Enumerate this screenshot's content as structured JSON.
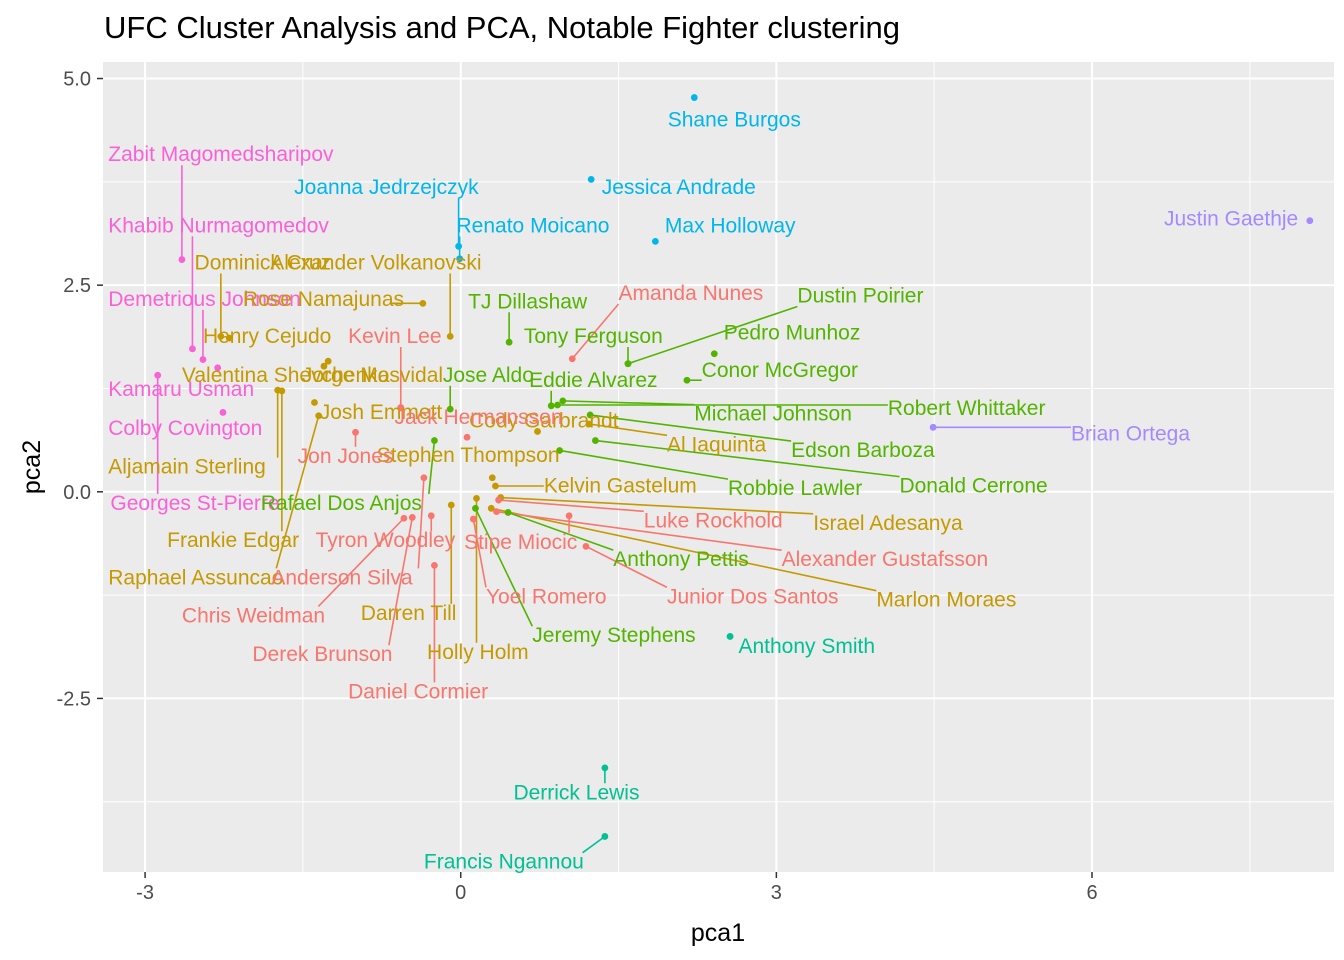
{
  "chart_data": {
    "type": "scatter",
    "title": "UFC Cluster Analysis and PCA, Notable Fighter clustering",
    "xlabel": "pca1",
    "ylabel": "pca2",
    "xlim": [
      -3.4,
      8.3
    ],
    "ylim": [
      -4.6,
      5.2
    ],
    "x_ticks": [
      -3,
      0,
      3,
      6
    ],
    "y_ticks": [
      5.0,
      2.5,
      0.0,
      -2.5
    ],
    "x_tick_labels": [
      "-3",
      "0",
      "3",
      "6"
    ],
    "y_tick_labels": [
      "5.0",
      "2.5",
      "0.0",
      "-2.5"
    ],
    "grid": true,
    "legend": "none",
    "colors": {
      "1": "#F8766D",
      "2": "#C49A00",
      "3": "#53B400",
      "4": "#00C094",
      "5": "#00B6EB",
      "6": "#A58AFF",
      "7": "#FB61D7"
    },
    "points": [
      {
        "name": "Shane Burgos",
        "x": 2.22,
        "y": 4.77,
        "c": 5,
        "lx": 2.6,
        "ly": 4.42,
        "a": "middle"
      },
      {
        "name": "Joanna Jedrzejczyk",
        "x": -0.02,
        "y": 2.97,
        "c": 5,
        "lx": 0.17,
        "ly": 3.6,
        "a": "end"
      },
      {
        "name": "Jessica Andrade",
        "x": 1.24,
        "y": 3.78,
        "c": 5,
        "lx": 1.34,
        "ly": 3.6,
        "a": "start"
      },
      {
        "name": "Renato Moicano",
        "x": -0.01,
        "y": 2.82,
        "c": 5,
        "lx": -0.04,
        "ly": 3.14,
        "a": "start"
      },
      {
        "name": "Max Holloway",
        "x": 1.85,
        "y": 3.03,
        "c": 5,
        "lx": 1.94,
        "ly": 3.14,
        "a": "start"
      },
      {
        "name": "Justin Gaethje",
        "x": 8.07,
        "y": 3.28,
        "c": 6,
        "lx": 7.96,
        "ly": 3.22,
        "a": "end"
      },
      {
        "name": "Brian Ortega",
        "x": 4.49,
        "y": 0.78,
        "c": 6,
        "lx": 5.8,
        "ly": 0.62,
        "a": "start"
      },
      {
        "name": "Zabit Magomedsharipov",
        "x": -2.65,
        "y": 2.81,
        "c": 7,
        "lx": -3.35,
        "ly": 4.0,
        "a": "start"
      },
      {
        "name": "Khabib Nurmagomedov",
        "x": -2.55,
        "y": 1.73,
        "c": 7,
        "lx": -3.35,
        "ly": 3.14,
        "a": "start"
      },
      {
        "name": "Demetrious Johnson",
        "x": -2.45,
        "y": 1.6,
        "c": 7,
        "lx": -3.35,
        "ly": 2.25,
        "a": "start"
      },
      {
        "name": "Kamaru Usman",
        "x": -2.31,
        "y": 1.5,
        "c": 7,
        "lx": -3.35,
        "ly": 1.16,
        "a": "start"
      },
      {
        "name": "Colby Covington",
        "x": -2.26,
        "y": 0.96,
        "c": 7,
        "lx": -3.35,
        "ly": 0.69,
        "a": "start"
      },
      {
        "name": "Georges St-Pierre",
        "x": -2.88,
        "y": 1.41,
        "c": 7,
        "lx": -3.33,
        "ly": -0.22,
        "a": "start"
      },
      {
        "name": "Dominick Cruz",
        "x": -2.28,
        "y": 1.88,
        "c": 2,
        "lx": -2.53,
        "ly": 2.69,
        "a": "start"
      },
      {
        "name": "Alexander Volkanovski",
        "x": -0.1,
        "y": 1.88,
        "c": 2,
        "lx": -1.81,
        "ly": 2.69,
        "a": "start"
      },
      {
        "name": "Rose Namajunas",
        "x": -0.36,
        "y": 2.28,
        "c": 2,
        "lx": -2.07,
        "ly": 2.25,
        "a": "start"
      },
      {
        "name": "Henry Cejudo",
        "x": -2.2,
        "y": 1.86,
        "c": 2,
        "lx": -2.45,
        "ly": 1.8,
        "a": "start"
      },
      {
        "name": "Valentina Shevchenko",
        "x": -1.26,
        "y": 1.58,
        "c": 2,
        "lx": -2.65,
        "ly": 1.33,
        "a": "start"
      },
      {
        "name": "Jorge Masvidal",
        "x": -1.3,
        "y": 1.52,
        "c": 2,
        "lx": -1.51,
        "ly": 1.33,
        "a": "start"
      },
      {
        "name": "Josh Emmett",
        "x": -1.39,
        "y": 1.08,
        "c": 2,
        "lx": -1.34,
        "ly": 0.88,
        "a": "start"
      },
      {
        "name": "Aljamain Sterling",
        "x": -1.74,
        "y": 1.23,
        "c": 2,
        "lx": -3.35,
        "ly": 0.22,
        "a": "start"
      },
      {
        "name": "Frankie Edgar",
        "x": -1.7,
        "y": 1.22,
        "c": 2,
        "lx": -2.79,
        "ly": -0.67,
        "a": "start"
      },
      {
        "name": "Raphael Assuncao",
        "x": -1.35,
        "y": 0.92,
        "c": 2,
        "lx": -3.35,
        "ly": -1.12,
        "a": "start"
      },
      {
        "name": "Stephen Thompson",
        "x": 0.3,
        "y": 0.17,
        "c": 2,
        "lx": 0.07,
        "ly": 0.36,
        "a": "middle"
      },
      {
        "name": "Cody Garbrandt",
        "x": 0.73,
        "y": 0.73,
        "c": 2,
        "lx": 0.79,
        "ly": 0.78,
        "a": "middle"
      },
      {
        "name": "Al Iaquinta",
        "x": 1.22,
        "y": 0.82,
        "c": 2,
        "lx": 1.96,
        "ly": 0.49,
        "a": "start"
      },
      {
        "name": "Kelvin Gastelum",
        "x": 0.33,
        "y": 0.07,
        "c": 2,
        "lx": 0.79,
        "ly": -0.01,
        "a": "start"
      },
      {
        "name": "Israel Adesanya",
        "x": 0.38,
        "y": -0.07,
        "c": 2,
        "lx": 3.35,
        "ly": -0.46,
        "a": "start"
      },
      {
        "name": "Marlon Moraes",
        "x": 0.29,
        "y": -0.2,
        "c": 2,
        "lx": 3.95,
        "ly": -1.39,
        "a": "start"
      },
      {
        "name": "Darren Till",
        "x": -0.09,
        "y": -0.16,
        "c": 2,
        "lx": -0.95,
        "ly": -1.55,
        "a": "start"
      },
      {
        "name": "Holly Holm",
        "x": 0.15,
        "y": -0.08,
        "c": 2,
        "lx": -0.32,
        "ly": -2.02,
        "a": "start"
      },
      {
        "name": "Amanda Nunes",
        "x": 1.06,
        "y": 1.61,
        "c": 1,
        "lx": 1.5,
        "ly": 2.32,
        "a": "start"
      },
      {
        "name": "Kevin Lee",
        "x": -0.57,
        "y": 1.02,
        "c": 1,
        "lx": -1.07,
        "ly": 1.8,
        "a": "start"
      },
      {
        "name": "Jack Hermansson",
        "x": 0.06,
        "y": 0.66,
        "c": 1,
        "lx": -0.63,
        "ly": 0.82,
        "a": "start"
      },
      {
        "name": "Jon Jones",
        "x": -1.0,
        "y": 0.72,
        "c": 1,
        "lx": -1.55,
        "ly": 0.35,
        "a": "start"
      },
      {
        "name": "Luke Rockhold",
        "x": 0.36,
        "y": -0.1,
        "c": 1,
        "lx": 1.74,
        "ly": -0.43,
        "a": "start"
      },
      {
        "name": "Alexander Gustafsson",
        "x": 0.34,
        "y": -0.24,
        "c": 1,
        "lx": 3.05,
        "ly": -0.9,
        "a": "start"
      },
      {
        "name": "Stipe Miocic",
        "x": 1.03,
        "y": -0.29,
        "c": 1,
        "lx": 0.57,
        "ly": -0.69,
        "a": "middle"
      },
      {
        "name": "Junior Dos Santos",
        "x": 1.19,
        "y": -0.66,
        "c": 1,
        "lx": 1.96,
        "ly": -1.35,
        "a": "start"
      },
      {
        "name": "Yoel Romero",
        "x": 0.12,
        "y": -0.33,
        "c": 1,
        "lx": 0.24,
        "ly": -1.35,
        "a": "start"
      },
      {
        "name": "Tyron Woodley",
        "x": -0.28,
        "y": -0.29,
        "c": 1,
        "lx": -1.38,
        "ly": -0.67,
        "a": "start"
      },
      {
        "name": "Anderson Silva",
        "x": -0.35,
        "y": 0.17,
        "c": 1,
        "lx": -1.8,
        "ly": -1.12,
        "a": "start"
      },
      {
        "name": "Chris Weidman",
        "x": -0.54,
        "y": -0.32,
        "c": 1,
        "lx": -2.65,
        "ly": -1.58,
        "a": "start"
      },
      {
        "name": "Derek Brunson",
        "x": -0.46,
        "y": -0.31,
        "c": 1,
        "lx": -1.98,
        "ly": -2.05,
        "a": "start"
      },
      {
        "name": "Daniel Cormier",
        "x": -0.25,
        "y": -0.89,
        "c": 1,
        "lx": -1.07,
        "ly": -2.5,
        "a": "start"
      },
      {
        "name": "TJ Dillashaw",
        "x": 0.46,
        "y": 1.81,
        "c": 3,
        "lx": 0.07,
        "ly": 2.22,
        "a": "start"
      },
      {
        "name": "Tony Ferguson",
        "x": 1.59,
        "y": 1.55,
        "c": 3,
        "lx": 0.6,
        "ly": 1.8,
        "a": "start"
      },
      {
        "name": "Dustin Poirier",
        "x": 1.59,
        "y": 1.55,
        "c": 3,
        "lx": 3.2,
        "ly": 2.29,
        "a": "start"
      },
      {
        "name": "Pedro Munhoz",
        "x": 2.41,
        "y": 1.67,
        "c": 3,
        "lx": 2.5,
        "ly": 1.84,
        "a": "start"
      },
      {
        "name": "Conor McGregor",
        "x": 2.15,
        "y": 1.35,
        "c": 3,
        "lx": 2.29,
        "ly": 1.39,
        "a": "start"
      },
      {
        "name": "Eddie Alvarez",
        "x": 0.86,
        "y": 1.04,
        "c": 3,
        "lx": 0.65,
        "ly": 1.27,
        "a": "start"
      },
      {
        "name": "Jose Aldo",
        "x": -0.1,
        "y": 1.0,
        "c": 3,
        "lx": -0.17,
        "ly": 1.33,
        "a": "start"
      },
      {
        "name": "Michael Johnson",
        "x": 0.97,
        "y": 1.1,
        "c": 3,
        "lx": 2.22,
        "ly": 0.86,
        "a": "start"
      },
      {
        "name": "Robert Whittaker",
        "x": 0.92,
        "y": 1.05,
        "c": 3,
        "lx": 4.06,
        "ly": 0.93,
        "a": "start"
      },
      {
        "name": "Edson Barboza",
        "x": 1.23,
        "y": 0.93,
        "c": 3,
        "lx": 3.14,
        "ly": 0.42,
        "a": "start"
      },
      {
        "name": "Donald Cerrone",
        "x": 1.28,
        "y": 0.62,
        "c": 3,
        "lx": 4.17,
        "ly": -0.01,
        "a": "start"
      },
      {
        "name": "Robbie Lawler",
        "x": 0.94,
        "y": 0.5,
        "c": 3,
        "lx": 2.54,
        "ly": -0.04,
        "a": "start"
      },
      {
        "name": "Rafael Dos Anjos",
        "x": -0.25,
        "y": 0.62,
        "c": 3,
        "lx": -1.9,
        "ly": -0.22,
        "a": "start"
      },
      {
        "name": "Anthony Pettis",
        "x": 0.45,
        "y": -0.25,
        "c": 3,
        "lx": 1.45,
        "ly": -0.9,
        "a": "start"
      },
      {
        "name": "Jeremy Stephens",
        "x": 0.14,
        "y": -0.2,
        "c": 3,
        "lx": 0.68,
        "ly": -1.82,
        "a": "start"
      },
      {
        "name": "Anthony Smith",
        "x": 2.56,
        "y": -1.75,
        "c": 4,
        "lx": 2.64,
        "ly": -1.95,
        "a": "start"
      },
      {
        "name": "Derrick Lewis",
        "x": 1.37,
        "y": -3.34,
        "c": 4,
        "lx": 1.1,
        "ly": -3.72,
        "a": "middle"
      },
      {
        "name": "Francis Ngannou",
        "x": 1.37,
        "y": -4.17,
        "c": 4,
        "lx": 0.41,
        "ly": -4.56,
        "a": "middle"
      }
    ]
  }
}
